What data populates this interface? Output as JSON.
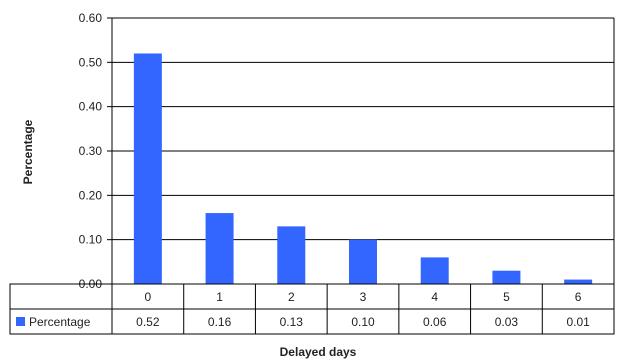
{
  "chart_data": {
    "type": "bar",
    "categories": [
      "0",
      "1",
      "2",
      "3",
      "4",
      "5",
      "6"
    ],
    "series": [
      {
        "name": "Percentage",
        "values": [
          0.52,
          0.16,
          0.13,
          0.1,
          0.06,
          0.03,
          0.01
        ],
        "color": "#3366ff"
      }
    ],
    "table_values": [
      "0.52",
      "0.16",
      "0.13",
      "0.10",
      "0.06",
      "0.03",
      "0.01"
    ],
    "xlabel": "Delayed days",
    "ylabel": "Percentage",
    "ylim": [
      0,
      0.6
    ],
    "yticks": [
      "0.00",
      "0.10",
      "0.20",
      "0.30",
      "0.40",
      "0.50",
      "0.60"
    ],
    "grid": true,
    "legend": "in data table"
  }
}
